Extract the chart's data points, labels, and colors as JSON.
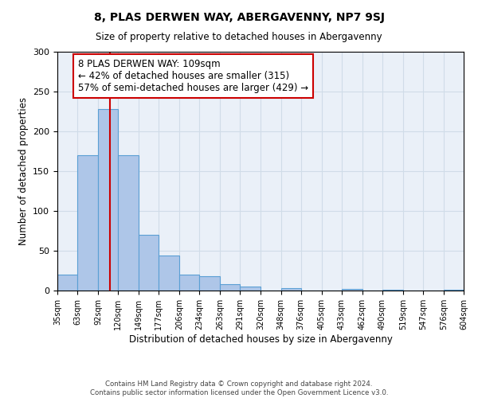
{
  "title": "8, PLAS DERWEN WAY, ABERGAVENNY, NP7 9SJ",
  "subtitle": "Size of property relative to detached houses in Abergavenny",
  "xlabel": "Distribution of detached houses by size in Abergavenny",
  "ylabel": "Number of detached properties",
  "bin_edges": [
    35,
    63,
    92,
    120,
    149,
    177,
    206,
    234,
    263,
    291,
    320,
    348,
    376,
    405,
    433,
    462,
    490,
    519,
    547,
    576,
    604
  ],
  "bin_counts": [
    20,
    170,
    228,
    170,
    70,
    44,
    20,
    18,
    8,
    5,
    0,
    3,
    0,
    0,
    2,
    0,
    1,
    0,
    0,
    1
  ],
  "bar_color": "#aec6e8",
  "bar_edge_color": "#5a9fd4",
  "vline_x": 109,
  "vline_color": "#cc0000",
  "annotation_line1": "8 PLAS DERWEN WAY: 109sqm",
  "annotation_line2": "← 42% of detached houses are smaller (315)",
  "annotation_line3": "57% of semi-detached houses are larger (429) →",
  "annotation_fontsize": 8.5,
  "annotation_box_color": "#ffffff",
  "annotation_box_edge": "#cc0000",
  "ylim": [
    0,
    300
  ],
  "tick_labels": [
    "35sqm",
    "63sqm",
    "92sqm",
    "120sqm",
    "149sqm",
    "177sqm",
    "206sqm",
    "234sqm",
    "263sqm",
    "291sqm",
    "320sqm",
    "348sqm",
    "376sqm",
    "405sqm",
    "433sqm",
    "462sqm",
    "490sqm",
    "519sqm",
    "547sqm",
    "576sqm",
    "604sqm"
  ],
  "grid_color": "#d0dce8",
  "bg_color": "#eaf0f8",
  "footer_line1": "Contains HM Land Registry data © Crown copyright and database right 2024.",
  "footer_line2": "Contains public sector information licensed under the Open Government Licence v3.0."
}
